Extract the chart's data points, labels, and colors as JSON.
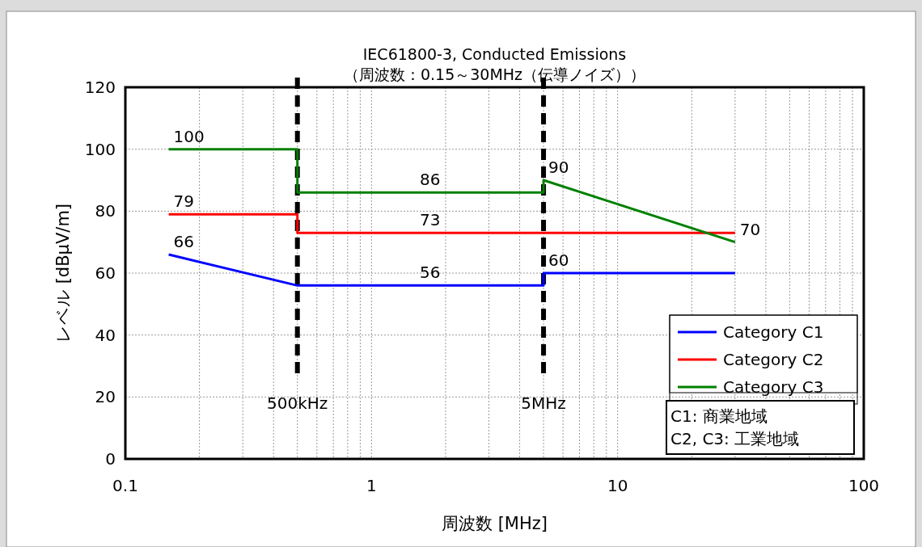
{
  "chart_data": {
    "type": "line",
    "title": "IEC61800-3, Conducted Emissions",
    "subtitle": "（周波数：0.15～30MHz（伝導ノイズ））",
    "xlabel": "周波数 [MHz]",
    "ylabel": "レベル [dBμV/m]",
    "log": "x",
    "xlim": [
      0.1,
      100
    ],
    "xticks": [
      0.1,
      1,
      10,
      100
    ],
    "ylim": [
      0,
      120
    ],
    "yticks": [
      0,
      20,
      40,
      60,
      80,
      100,
      120
    ],
    "grid": true,
    "legend": "bottom right",
    "line_style": "solid",
    "marker": "none",
    "series": [
      {
        "name": "Category C1",
        "color": "#0000ff",
        "x": [
          0.15,
          0.5,
          5,
          5,
          30
        ],
        "values": [
          66,
          56,
          56,
          60,
          60
        ]
      },
      {
        "name": "Category C2",
        "color": "#ff0000",
        "x": [
          0.15,
          0.5,
          0.5,
          30
        ],
        "values": [
          79,
          79,
          73,
          73
        ]
      },
      {
        "name": "Category C3",
        "color": "#008000",
        "x": [
          0.15,
          0.5,
          0.5,
          5,
          5,
          30
        ],
        "values": [
          100,
          100,
          86,
          86,
          90,
          70
        ]
      }
    ],
    "ref_lines": [
      {
        "axis": "x",
        "value": 0.5,
        "label": "500kHz",
        "color": "#000000",
        "line_style": "dashed"
      },
      {
        "axis": "x",
        "value": 5,
        "label": "5MHz",
        "color": "#000000",
        "line_style": "dashed"
      }
    ],
    "annotations": [
      {
        "text": "100",
        "x": 0.15,
        "y": 100
      },
      {
        "text": "79",
        "x": 0.15,
        "y": 79
      },
      {
        "text": "66",
        "x": 0.15,
        "y": 66
      },
      {
        "text": "86",
        "x": 1.5,
        "y": 86
      },
      {
        "text": "73",
        "x": 1.5,
        "y": 73
      },
      {
        "text": "56",
        "x": 1.5,
        "y": 56
      },
      {
        "text": "90",
        "x": 5,
        "y": 90
      },
      {
        "text": "60",
        "x": 5,
        "y": 60
      },
      {
        "text": "70",
        "x": 30,
        "y": 70
      },
      "C1: 商業地域",
      "C2, C3: 工業地域"
    ]
  }
}
